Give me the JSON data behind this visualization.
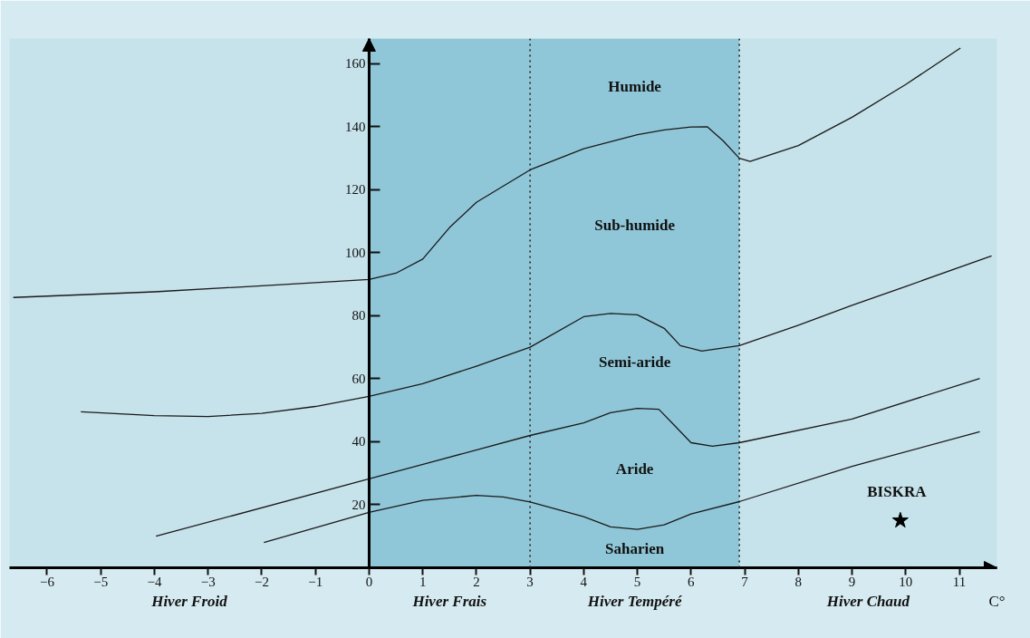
{
  "chart_data": {
    "type": "line",
    "xlabel": "C°",
    "xlim": [
      -6.7,
      11.7
    ],
    "ylim": [
      0,
      168
    ],
    "xticks": [
      -6,
      -5,
      -4,
      -3,
      -2,
      -1,
      0,
      1,
      2,
      3,
      4,
      5,
      6,
      7,
      8,
      9,
      10,
      11
    ],
    "yticks": [
      20,
      40,
      60,
      80,
      100,
      120,
      140,
      160
    ],
    "grid": false,
    "marker": "none",
    "line_style": "solid",
    "series": [
      {
        "color": "#1a1a1a",
        "x": [
          -6.63,
          -4,
          -2,
          0,
          0.5,
          1,
          1.5,
          2,
          3,
          4,
          5,
          5.5,
          6,
          6.3,
          6.6,
          6.9,
          7.1,
          8,
          9,
          10,
          11.02
        ],
        "values": [
          85.8,
          87.6,
          89.5,
          91.5,
          93.5,
          98,
          108,
          116,
          126.3,
          133,
          137.5,
          139,
          139.9,
          140,
          135.5,
          130,
          129,
          134,
          143,
          153.4,
          165
        ]
      },
      {
        "color": "#1a1a1a",
        "x": [
          -5.37,
          -4,
          -3,
          -2,
          -1,
          0,
          1,
          2,
          3,
          4,
          4.5,
          5,
          5.5,
          5.8,
          6.2,
          6.9,
          8,
          9,
          10,
          11.6
        ],
        "values": [
          49.5,
          48.3,
          48,
          49,
          51.2,
          54.4,
          58.4,
          64,
          70,
          79.7,
          80.7,
          80.3,
          76,
          70.5,
          68.8,
          70.5,
          77,
          83.3,
          89.3,
          99
        ]
      },
      {
        "color": "#1a1a1a",
        "x": [
          -3.97,
          0,
          3,
          4,
          4.5,
          5,
          5.4,
          5.7,
          6,
          6.4,
          6.9,
          9,
          11.38
        ],
        "values": [
          10,
          28.2,
          42,
          46,
          49.2,
          50.6,
          50.3,
          45,
          39.7,
          38.6,
          39.7,
          47.2,
          60.1
        ]
      },
      {
        "color": "#1a1a1a",
        "x": [
          -1.96,
          0,
          1,
          2,
          2.5,
          3,
          4,
          4.5,
          5,
          5.5,
          6,
          6.9,
          9,
          11.38
        ],
        "values": [
          8,
          17.6,
          21.4,
          23,
          22.5,
          20.9,
          16.2,
          13,
          12.2,
          13.6,
          17.1,
          21,
          32.2,
          43.2
        ]
      },
      {
        "type": "scatter",
        "name": "BISKRA",
        "color": "#000000",
        "marker": "star",
        "x": [
          9.9
        ],
        "values": [
          15
        ]
      }
    ],
    "ref_lines": [
      {
        "axis": "x",
        "value": 3,
        "line_style": "dotted",
        "color": "#1a1a1a"
      },
      {
        "axis": "x",
        "value": 6.9,
        "line_style": "dotted",
        "color": "#1a1a1a"
      }
    ],
    "bands": [
      {
        "axis": "x",
        "from": -6.7,
        "to": 0,
        "label": "Hiver Froid",
        "color": "#c6e2eb"
      },
      {
        "axis": "x",
        "from": 0,
        "to": 3,
        "label": "Hiver Frais",
        "color": "#8fc7d8"
      },
      {
        "axis": "x",
        "from": 3,
        "to": 6.9,
        "label": "Hiver Tempéré",
        "color": "#8fc7d8"
      },
      {
        "axis": "x",
        "from": 6.9,
        "to": 11.7,
        "label": "Hiver Chaud",
        "color": "#c6e2eb"
      }
    ],
    "annotations": [
      "Humide",
      "Sub-humide",
      "Semi-aride",
      "Aride",
      "Saharien"
    ]
  }
}
